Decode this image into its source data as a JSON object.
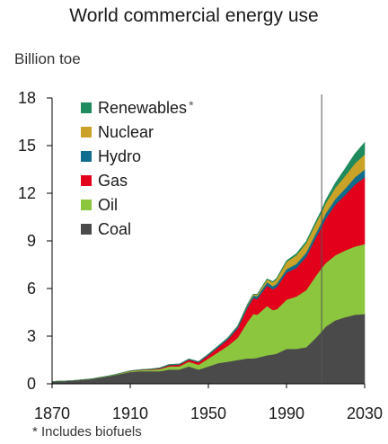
{
  "chart_data": {
    "type": "area",
    "stacked": true,
    "title": "World commercial energy use",
    "ylabel": "Billion toe",
    "xlabel": "",
    "ylim": [
      0,
      18
    ],
    "xlim": [
      1870,
      2030
    ],
    "y_ticks": [
      "0",
      "3",
      "6",
      "9",
      "12",
      "15",
      "18"
    ],
    "x_ticks": [
      "1870",
      "1910",
      "1950",
      "1990",
      "2030"
    ],
    "projection_marker_year": 2008,
    "footnote": "* Includes biofuels",
    "legend_position": "top-left",
    "x": [
      1870,
      1880,
      1890,
      1900,
      1910,
      1915,
      1920,
      1925,
      1930,
      1935,
      1940,
      1945,
      1950,
      1955,
      1960,
      1965,
      1970,
      1973,
      1975,
      1980,
      1983,
      1985,
      1990,
      1995,
      2000,
      2005,
      2008,
      2010,
      2015,
      2020,
      2025,
      2030
    ],
    "series": [
      {
        "name": "Coal",
        "color": "#4a4a4a",
        "values": [
          0.15,
          0.2,
          0.3,
          0.5,
          0.75,
          0.8,
          0.8,
          0.8,
          0.9,
          0.9,
          1.1,
          0.9,
          1.1,
          1.3,
          1.4,
          1.5,
          1.6,
          1.6,
          1.65,
          1.8,
          1.85,
          1.9,
          2.2,
          2.2,
          2.3,
          2.9,
          3.3,
          3.6,
          4.0,
          4.2,
          4.35,
          4.4
        ]
      },
      {
        "name": "Oil",
        "color": "#8cc63f",
        "values": [
          0.0,
          0.0,
          0.01,
          0.02,
          0.05,
          0.06,
          0.08,
          0.12,
          0.2,
          0.2,
          0.3,
          0.3,
          0.5,
          0.7,
          1.0,
          1.4,
          2.3,
          2.8,
          2.7,
          3.1,
          2.8,
          2.8,
          3.1,
          3.3,
          3.6,
          3.9,
          4.0,
          4.0,
          4.1,
          4.2,
          4.3,
          4.4
        ]
      },
      {
        "name": "Gas",
        "color": "#e2001a",
        "values": [
          0.0,
          0.0,
          0.0,
          0.0,
          0.01,
          0.02,
          0.03,
          0.05,
          0.08,
          0.1,
          0.12,
          0.15,
          0.2,
          0.3,
          0.4,
          0.6,
          0.9,
          1.0,
          1.0,
          1.3,
          1.3,
          1.4,
          1.7,
          1.8,
          2.1,
          2.4,
          2.6,
          2.8,
          3.2,
          3.5,
          3.9,
          4.2
        ]
      },
      {
        "name": "Hydro",
        "color": "#0f6c8c",
        "values": [
          0.0,
          0.0,
          0.0,
          0.0,
          0.01,
          0.01,
          0.02,
          0.03,
          0.04,
          0.04,
          0.05,
          0.05,
          0.07,
          0.08,
          0.1,
          0.12,
          0.15,
          0.16,
          0.17,
          0.2,
          0.2,
          0.21,
          0.23,
          0.25,
          0.26,
          0.28,
          0.3,
          0.32,
          0.35,
          0.4,
          0.45,
          0.5
        ]
      },
      {
        "name": "Nuclear",
        "color": "#c9a227",
        "values": [
          0.0,
          0.0,
          0.0,
          0.0,
          0.0,
          0.0,
          0.0,
          0.0,
          0.0,
          0.0,
          0.0,
          0.0,
          0.0,
          0.0,
          0.01,
          0.02,
          0.05,
          0.08,
          0.1,
          0.18,
          0.25,
          0.3,
          0.45,
          0.55,
          0.6,
          0.62,
          0.62,
          0.65,
          0.7,
          0.8,
          0.88,
          0.95
        ]
      },
      {
        "name": "Renewables",
        "legend_mark": "*",
        "color": "#1e8a5e",
        "values": [
          0.0,
          0.0,
          0.0,
          0.0,
          0.0,
          0.0,
          0.0,
          0.0,
          0.0,
          0.0,
          0.0,
          0.0,
          0.0,
          0.0,
          0.0,
          0.0,
          0.01,
          0.01,
          0.02,
          0.03,
          0.04,
          0.05,
          0.07,
          0.09,
          0.1,
          0.12,
          0.14,
          0.18,
          0.3,
          0.45,
          0.6,
          0.75
        ]
      }
    ]
  }
}
